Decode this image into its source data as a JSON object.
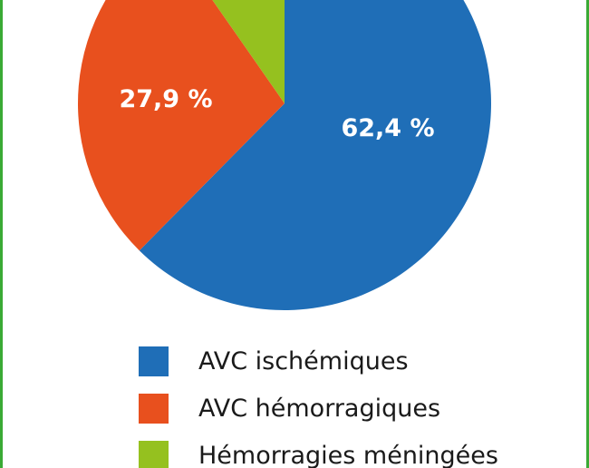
{
  "chart_data": {
    "type": "pie",
    "title": "",
    "categories": [
      "AVC ischémiques",
      "AVC hémorragiques",
      "Hémorragies méningées"
    ],
    "values": [
      62.4,
      27.9,
      9.7
    ],
    "labels": [
      "62,4 %",
      "27,9 %",
      ""
    ],
    "colors": [
      "#1f6eb7",
      "#e8501e",
      "#95c11f"
    ],
    "start_angle_deg": 0,
    "direction": "clockwise",
    "legend_position": "bottom"
  },
  "frame": {
    "border_color": "#3aaa35"
  }
}
